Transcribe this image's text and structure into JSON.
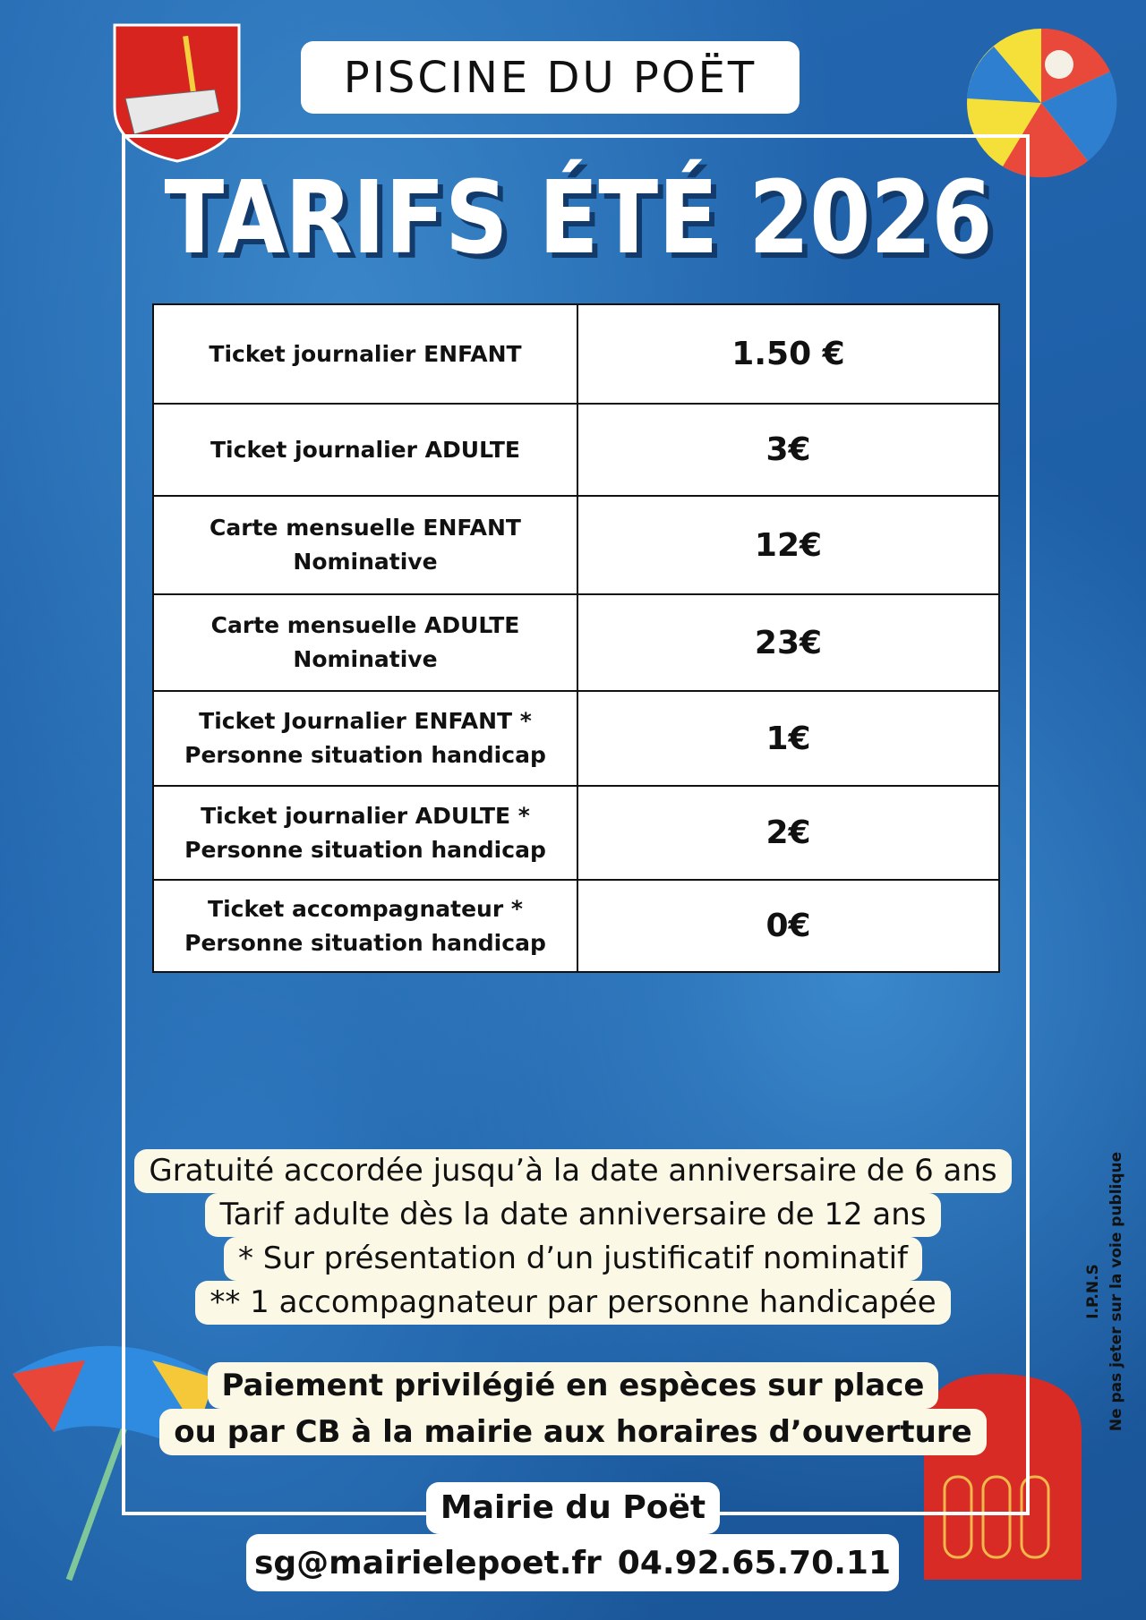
{
  "header": {
    "title": "PISCINE DU POËT"
  },
  "main_title": "TARIFS ÉTÉ 2026",
  "table": {
    "rows": [
      {
        "label": [
          "Ticket journalier ENFANT"
        ],
        "price": "1.50 €"
      },
      {
        "label": [
          "Ticket journalier ADULTE"
        ],
        "price": "3€"
      },
      {
        "label": [
          "Carte mensuelle ENFANT",
          "Nominative"
        ],
        "price": "12€"
      },
      {
        "label": [
          "Carte mensuelle ADULTE",
          "Nominative"
        ],
        "price": "23€"
      },
      {
        "label": [
          "Ticket Journalier ENFANT *",
          "Personne situation handicap"
        ],
        "price": "1€"
      },
      {
        "label": [
          "Ticket journalier ADULTE *",
          "Personne situation handicap"
        ],
        "price": "2€"
      },
      {
        "label": [
          "Ticket accompagnateur *",
          "Personne situation handicap"
        ],
        "price": "0€"
      }
    ]
  },
  "notes": [
    "Gratuité accordée jusqu’à la date anniversaire de 6 ans",
    "Tarif adulte dès la date anniversaire de 12 ans",
    "* Sur présentation d’un justificatif nominatif",
    "** 1 accompagnateur par personne handicapée"
  ],
  "payment": [
    "Paiement privilégié en espèces sur place",
    "ou par CB à la mairie aux horaires d’ouverture"
  ],
  "footer": {
    "name": "Mairie du Poët",
    "email": "sg@mairielepoet.fr",
    "phone": "04.92.65.70.11"
  },
  "side_note": [
    "I.P.N.S",
    "Ne pas jeter sur la voie publique"
  ]
}
